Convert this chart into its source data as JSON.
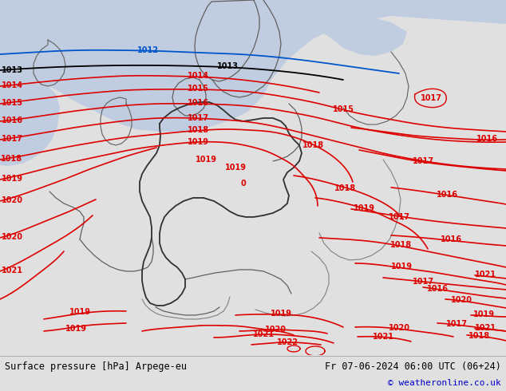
{
  "title_left": "Surface pressure [hPa] Arpege-eu",
  "title_right": "Fr 07-06-2024 06:00 UTC (06+24)",
  "copyright": "© weatheronline.co.uk",
  "land_color": "#c8f0a0",
  "ocean_color": "#c0cce0",
  "land_color2": "#d8f0b0",
  "isobar_red": "#dd0000",
  "isobar_black": "#000000",
  "isobar_blue": "#0055cc",
  "border_color": "#404040",
  "bottom_bar_color": "#e0e0e0",
  "bottom_text_color": "#000000",
  "copyright_color": "#0000cc",
  "figsize": [
    6.34,
    4.9
  ],
  "dpi": 100
}
